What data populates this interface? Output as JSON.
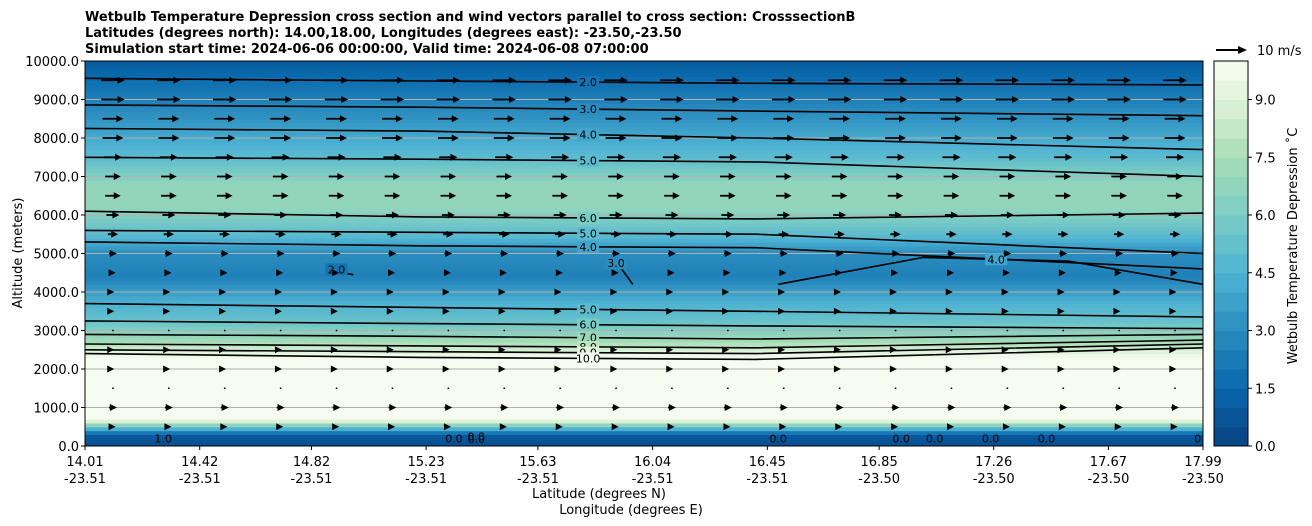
{
  "chart_data": {
    "type": "contour",
    "title": [
      "Wetbulb Temperature Depression cross section and wind vectors parallel to cross section: CrosssectionB",
      "Latitudes (degrees north): 14.00,18.00, Longitudes (degrees east): -23.50,-23.50",
      "Simulation start time: 2024-06-06 00:00:00, Valid time: 2024-06-08 07:00:00"
    ],
    "xlabel": "Latitude (degrees N)",
    "xlabel2": "Longitude (degrees E)",
    "ylabel": "Altitude (meters)",
    "ylim": [
      0,
      10000
    ],
    "grid": "horizontal",
    "x_ticks": [
      {
        "lat": "14.01",
        "lon": "-23.51"
      },
      {
        "lat": "14.42",
        "lon": "-23.51"
      },
      {
        "lat": "14.82",
        "lon": "-23.51"
      },
      {
        "lat": "15.23",
        "lon": "-23.51"
      },
      {
        "lat": "15.63",
        "lon": "-23.51"
      },
      {
        "lat": "16.04",
        "lon": "-23.51"
      },
      {
        "lat": "16.45",
        "lon": "-23.51"
      },
      {
        "lat": "16.85",
        "lon": "-23.50"
      },
      {
        "lat": "17.26",
        "lon": "-23.50"
      },
      {
        "lat": "17.67",
        "lon": "-23.50"
      },
      {
        "lat": "17.99",
        "lon": "-23.50"
      }
    ],
    "y_ticks": [
      "0.0",
      "1000.0",
      "2000.0",
      "3000.0",
      "4000.0",
      "5000.0",
      "6000.0",
      "7000.0",
      "8000.0",
      "9000.0",
      "10000.0"
    ],
    "y_tick_values": [
      0,
      1000,
      2000,
      3000,
      4000,
      5000,
      6000,
      7000,
      8000,
      9000,
      10000
    ],
    "colorbar": {
      "label": "Wetbulb Temperature Depression ˚C",
      "min": 0,
      "max": 10,
      "ticks": [
        "0.0",
        "1.5",
        "3.0",
        "4.5",
        "6.0",
        "7.5",
        "9.0"
      ],
      "tick_values": [
        0,
        1.5,
        3,
        4.5,
        6,
        7.5,
        9
      ]
    },
    "quiver_key": {
      "label": "10 m/s"
    },
    "altitude_profile": [
      {
        "alt": 0,
        "value": 0.5
      },
      {
        "alt": 300,
        "value": 1.0
      },
      {
        "alt": 700,
        "value": 10
      },
      {
        "alt": 2000,
        "value": 10
      },
      {
        "alt": 2300,
        "value": 10
      },
      {
        "alt": 2700,
        "value": 7.5
      },
      {
        "alt": 3200,
        "value": 5.5
      },
      {
        "alt": 3700,
        "value": 4.5
      },
      {
        "alt": 4400,
        "value": 2.5
      },
      {
        "alt": 5000,
        "value": 3.0
      },
      {
        "alt": 5500,
        "value": 5.0
      },
      {
        "alt": 6200,
        "value": 6.8
      },
      {
        "alt": 6800,
        "value": 6.8
      },
      {
        "alt": 7500,
        "value": 5.0
      },
      {
        "alt": 8200,
        "value": 3.8
      },
      {
        "alt": 9000,
        "value": 2.5
      },
      {
        "alt": 10000,
        "value": 1.0
      }
    ],
    "contours": [
      {
        "label": "2.0",
        "level": 2,
        "points": [
          [
            0,
            9550
          ],
          [
            0.3,
            9480
          ],
          [
            0.6,
            9420
          ],
          [
            1,
            9380
          ]
        ]
      },
      {
        "label": "3.0",
        "level": 3,
        "points": [
          [
            0,
            8860
          ],
          [
            0.3,
            8800
          ],
          [
            0.6,
            8700
          ],
          [
            1,
            8580
          ]
        ]
      },
      {
        "label": "4.0",
        "level": 4,
        "points": [
          [
            0,
            8250
          ],
          [
            0.3,
            8180
          ],
          [
            0.6,
            8000
          ],
          [
            1,
            7700
          ]
        ]
      },
      {
        "label": "5.0",
        "level": 5,
        "points": [
          [
            0,
            7500
          ],
          [
            0.3,
            7450
          ],
          [
            0.6,
            7380
          ],
          [
            1,
            7000
          ]
        ]
      },
      {
        "label": "6.0",
        "level": 6,
        "points": [
          [
            0,
            6100
          ],
          [
            0.3,
            5950
          ],
          [
            0.6,
            5900
          ],
          [
            1,
            6050
          ]
        ]
      },
      {
        "label": "5.0",
        "level": 5,
        "points": [
          [
            0,
            5600
          ],
          [
            0.3,
            5550
          ],
          [
            0.6,
            5500
          ],
          [
            1,
            5000
          ]
        ]
      },
      {
        "label": "4.0",
        "level": 4,
        "points": [
          [
            0,
            5300
          ],
          [
            0.3,
            5200
          ],
          [
            0.6,
            5150
          ],
          [
            1,
            4600
          ]
        ]
      },
      {
        "label": "5.0",
        "level": 5,
        "points": [
          [
            0,
            3700
          ],
          [
            0.3,
            3600
          ],
          [
            0.6,
            3500
          ],
          [
            1,
            3350
          ]
        ]
      },
      {
        "label": "6.0",
        "level": 6,
        "points": [
          [
            0,
            3250
          ],
          [
            0.3,
            3180
          ],
          [
            0.6,
            3120
          ],
          [
            1,
            3050
          ]
        ]
      },
      {
        "label": "7.0",
        "level": 7,
        "points": [
          [
            0,
            2900
          ],
          [
            0.3,
            2850
          ],
          [
            0.6,
            2780
          ],
          [
            1,
            2900
          ]
        ]
      },
      {
        "label": "8.0",
        "level": 8,
        "points": [
          [
            0,
            2650
          ],
          [
            0.3,
            2600
          ],
          [
            0.6,
            2550
          ],
          [
            1,
            2750
          ]
        ]
      },
      {
        "label": "9.0",
        "level": 9,
        "points": [
          [
            0,
            2500
          ],
          [
            0.3,
            2450
          ],
          [
            0.6,
            2400
          ],
          [
            1,
            2650
          ]
        ]
      },
      {
        "label": "10.0",
        "level": 10,
        "points": [
          [
            0,
            2400
          ],
          [
            0.3,
            2300
          ],
          [
            0.6,
            2250
          ],
          [
            1,
            2550
          ]
        ]
      },
      {
        "label": "3.0",
        "level": 3,
        "points": [
          [
            0.47,
            4900
          ],
          [
            0.48,
            4600
          ],
          [
            0.49,
            4200
          ]
        ]
      },
      {
        "label": "2.0",
        "level": 2,
        "points": [
          [
            0.23,
            4620
          ],
          [
            0.22,
            4550
          ],
          [
            0.24,
            4450
          ]
        ]
      },
      {
        "label": "4.0",
        "level": 4,
        "points": [
          [
            0.62,
            4200
          ],
          [
            0.75,
            4900
          ],
          [
            0.88,
            4800
          ],
          [
            1,
            4200
          ]
        ]
      }
    ],
    "zero_labels": [
      {
        "label": "0.0",
        "x": 0.33,
        "alt": 200
      },
      {
        "label": "0.0",
        "x": 0.35,
        "alt": 250
      },
      {
        "label": "0.0",
        "x": 0.35,
        "alt": 180
      },
      {
        "label": "0.0",
        "x": 0.62,
        "alt": 200
      },
      {
        "label": "0.0",
        "x": 0.81,
        "alt": 200
      },
      {
        "label": "0.0",
        "x": 0.86,
        "alt": 200
      },
      {
        "label": "0.0",
        "x": 1.0,
        "alt": 200
      },
      {
        "label": "0.0",
        "x": 0.73,
        "alt": 200
      },
      {
        "label": "0.0",
        "x": 0.76,
        "alt": 200
      },
      {
        "label": "1.0",
        "x": 0.07,
        "alt": 200
      }
    ],
    "wind_rows": [
      {
        "alt": 9500,
        "speed": 9
      },
      {
        "alt": 9000,
        "speed": 9
      },
      {
        "alt": 8500,
        "speed": 8
      },
      {
        "alt": 8000,
        "speed": 8
      },
      {
        "alt": 7500,
        "speed": 7
      },
      {
        "alt": 7000,
        "speed": 6
      },
      {
        "alt": 6500,
        "speed": 6
      },
      {
        "alt": 6000,
        "speed": 5
      },
      {
        "alt": 5500,
        "speed": 4
      },
      {
        "alt": 5000,
        "speed": 3
      },
      {
        "alt": 4500,
        "speed": 2
      },
      {
        "alt": 4000,
        "speed": 1
      },
      {
        "alt": 3500,
        "speed": 1
      },
      {
        "alt": 3000,
        "speed": 0
      },
      {
        "alt": 2500,
        "speed": 1
      },
      {
        "alt": 2000,
        "speed": 1
      },
      {
        "alt": 1500,
        "speed": 0
      },
      {
        "alt": 1000,
        "speed": 3
      },
      {
        "alt": 500,
        "speed": 2
      }
    ]
  }
}
